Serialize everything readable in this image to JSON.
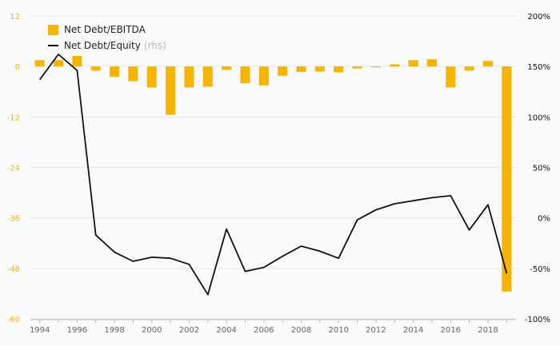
{
  "colors": {
    "bar": "#f5b400",
    "line": "#111111",
    "left_axis_text": "#f5b400",
    "axis_text": "#111111",
    "year_text": "#666666",
    "grid": "#e6e6e6",
    "background": "#fafafa"
  },
  "chart_data": {
    "type": "bar",
    "title": "",
    "x": [
      1994,
      1995,
      1996,
      1997,
      1998,
      1999,
      2000,
      2001,
      2002,
      2003,
      2004,
      2005,
      2006,
      2007,
      2008,
      2009,
      2010,
      2011,
      2012,
      2013,
      2014,
      2015,
      2016,
      2017,
      2018,
      2019
    ],
    "x_tick_labels": [
      "1994",
      "1996",
      "1998",
      "2000",
      "2002",
      "2004",
      "2006",
      "2008",
      "2010",
      "2012",
      "2014",
      "2016",
      "2018"
    ],
    "series": [
      {
        "name": "Net Debt/EBITDA",
        "type": "bar",
        "axis": "left",
        "values": [
          1.5,
          1.5,
          2.5,
          -1.0,
          -2.5,
          -3.5,
          -5.0,
          -11.5,
          -5.0,
          -4.8,
          -0.8,
          -4.0,
          -4.5,
          -2.2,
          -1.3,
          -1.2,
          -1.4,
          -0.5,
          -0.2,
          0.5,
          1.5,
          1.7,
          -5.0,
          -1.0,
          1.3,
          -53.5
        ]
      },
      {
        "name": "Net Debt/Equity",
        "label_suffix": "(rhs)",
        "type": "line",
        "axis": "right",
        "values": [
          137,
          162,
          146,
          -17,
          -34,
          -43,
          -39,
          -40,
          -46,
          -76,
          -11,
          -53,
          -49,
          -38,
          -28,
          -33,
          -40,
          -2,
          8,
          14,
          17,
          20,
          22,
          -12,
          13,
          -55
        ]
      }
    ],
    "y_left": {
      "ylim": [
        -60,
        12
      ],
      "ticks": [
        12,
        0,
        -12,
        -24,
        -36,
        -48,
        -60
      ],
      "tick_labels": [
        "12",
        "0",
        "-12",
        "-24",
        "-36",
        "-48",
        "-60"
      ]
    },
    "y_right": {
      "ylim": [
        -100,
        200
      ],
      "ticks": [
        200,
        150,
        100,
        50,
        0,
        -50,
        -100
      ],
      "tick_labels": [
        "200%",
        "150%",
        "100%",
        "50%",
        "0%",
        "-50%",
        "-100%"
      ]
    },
    "grid": true,
    "legend": "top-left"
  }
}
